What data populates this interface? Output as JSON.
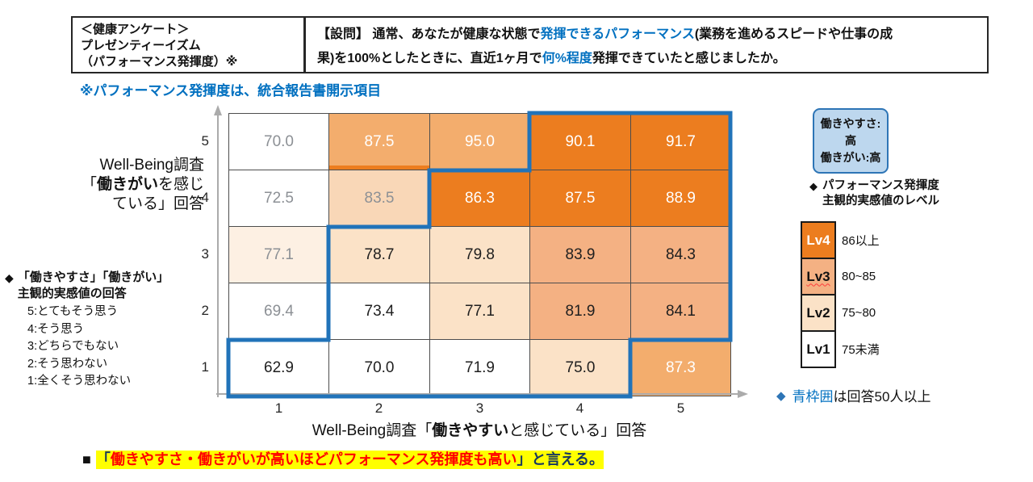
{
  "colors": {
    "level4_orange": "#EC7D1F",
    "level3_orange": "#F4B183",
    "level2_orange": "#FBE2C7",
    "level1_white": "#FFFFFF",
    "outside_sample_text_gray": "#8C9095",
    "blue_frame": "#2173B9",
    "accent_text_blue": "#0070C0",
    "quadrant_box_fill": "#BDD7EE",
    "quadrant_box_border": "#2E75B6",
    "highlight_yellow": "#FFFF00",
    "conclusion_red": "#FF0000",
    "conclusion_navy": "#17375E"
  },
  "header": {
    "topic_box_lines": [
      "＜健康アンケート＞",
      "プレゼンティーイズム",
      "（パフォーマンス発揮度）※"
    ],
    "question_line1": [
      {
        "t": "【設問】 通常、あなたが健康な状態で"
      },
      {
        "t": "発揮できるパフォーマンス",
        "c": "blue"
      },
      {
        "t": "(業務を進めるスピードや仕事の成"
      }
    ],
    "question_line2": [
      {
        "t": "果)を"
      },
      {
        "t": "100%",
        "c": "xbold"
      },
      {
        "t": "としたときに、直近1ヶ月で"
      },
      {
        "t": "何%程度",
        "c": "blue"
      },
      {
        "t": "発揮できていたと感じましたか。"
      }
    ],
    "disclosure_note": "※パフォーマンス発揮度は、統合報告書開示項目"
  },
  "chart_data": {
    "type": "heatmap",
    "x_title_segments": [
      {
        "t": "Well-Being調査「"
      },
      {
        "t": "働きやすい",
        "c": "bold"
      },
      {
        "t": "と感じている」回答"
      }
    ],
    "y_title_lines": [
      [
        {
          "t": "Well-Being調査"
        }
      ],
      [
        {
          "t": "「"
        },
        {
          "t": "働きがい",
          "c": "bold"
        },
        {
          "t": "を感じ"
        }
      ],
      [
        {
          "t": "ている」回答"
        }
      ]
    ],
    "x_ticks": [
      "1",
      "2",
      "3",
      "4",
      "5"
    ],
    "y_ticks": [
      "5",
      "4",
      "3",
      "2",
      "1"
    ],
    "matrix_rows_y5_to_y1": [
      [
        70.0,
        87.5,
        95.0,
        90.1,
        91.7
      ],
      [
        72.5,
        83.5,
        86.3,
        87.5,
        88.9
      ],
      [
        77.1,
        78.7,
        79.8,
        83.9,
        84.3
      ],
      [
        69.4,
        73.4,
        77.1,
        81.9,
        84.1
      ],
      [
        62.9,
        70.0,
        71.9,
        75.0,
        87.3
      ]
    ],
    "cells": [
      [
        {
          "v": "70.0",
          "lv": "lv1",
          "out": true
        },
        {
          "v": "87.5",
          "lv": "lv4",
          "out": true,
          "strip": true
        },
        {
          "v": "95.0",
          "lv": "lv4",
          "out": true
        },
        {
          "v": "90.1",
          "lv": "lv4"
        },
        {
          "v": "91.7",
          "lv": "lv4"
        }
      ],
      [
        {
          "v": "72.5",
          "lv": "lv1",
          "out": true
        },
        {
          "v": "83.5",
          "lv": "lv3",
          "out": true
        },
        {
          "v": "86.3",
          "lv": "lv4"
        },
        {
          "v": "87.5",
          "lv": "lv4"
        },
        {
          "v": "88.9",
          "lv": "lv4"
        }
      ],
      [
        {
          "v": "77.1",
          "lv": "lv2",
          "out": true
        },
        {
          "v": "78.7",
          "lv": "lv2"
        },
        {
          "v": "79.8",
          "lv": "lv2"
        },
        {
          "v": "83.9",
          "lv": "lv3"
        },
        {
          "v": "84.3",
          "lv": "lv3"
        }
      ],
      [
        {
          "v": "69.4",
          "lv": "lv1",
          "out": true
        },
        {
          "v": "73.4",
          "lv": "lv1"
        },
        {
          "v": "77.1",
          "lv": "lv2"
        },
        {
          "v": "81.9",
          "lv": "lv3"
        },
        {
          "v": "84.1",
          "lv": "lv3"
        }
      ],
      [
        {
          "v": "62.9",
          "lv": "lv1"
        },
        {
          "v": "70.0",
          "lv": "lv1"
        },
        {
          "v": "71.9",
          "lv": "lv1"
        },
        {
          "v": "75.0",
          "lv": "lv2"
        },
        {
          "v": "87.3",
          "lv": "lv4",
          "out": true
        }
      ]
    ],
    "blue_frame_meaning": "回答50人以上",
    "blue_frame_cells_by_row_y5_to_y1": [
      [
        4,
        5
      ],
      [
        3,
        4,
        5
      ],
      [
        2,
        3,
        4,
        5
      ],
      [
        2,
        3,
        4,
        5
      ],
      [
        1,
        2,
        3,
        4
      ]
    ],
    "levels": [
      {
        "label": "Lv4",
        "range": "86以上",
        "lv": "lv4",
        "white_text": true
      },
      {
        "label": "Lv3",
        "range": "80~85",
        "lv": "lv3",
        "misspell": true
      },
      {
        "label": "Lv2",
        "range": "75~80",
        "lv": "lv2"
      },
      {
        "label": "Lv1",
        "range": "75未満",
        "lv": "lv1"
      }
    ]
  },
  "left_legend": {
    "icon": "◆",
    "heading_line1": "「働きやすさ」「働きがい」",
    "heading_line2": "主観的実感値の回答",
    "items": [
      "5:とてもそう思う",
      "4:そう思う",
      "3:どちらでもない",
      "2:そう思わない",
      "1:全くそう思わない"
    ]
  },
  "right_panel": {
    "quadrant_box_line1": "働きやすさ:高",
    "quadrant_box_line2": "働きがい:高",
    "level_heading_icon": "◆",
    "level_heading_line1": "パフォーマンス発揮度",
    "level_heading_line2": "主観的実感値のレベル",
    "blue_note_icon": "◆",
    "blue_note_segments": [
      {
        "t": "青枠囲",
        "c": "blue"
      },
      {
        "t": "は回答50人以上"
      }
    ]
  },
  "conclusion": {
    "marker": "■",
    "segments": [
      {
        "t": "「",
        "c": "navy"
      },
      {
        "t": "働きやすさ・働きがいが高いほどパフォーマンス発揮度も高い",
        "c": "red"
      },
      {
        "t": "」と言える。",
        "c": "navy"
      }
    ]
  }
}
